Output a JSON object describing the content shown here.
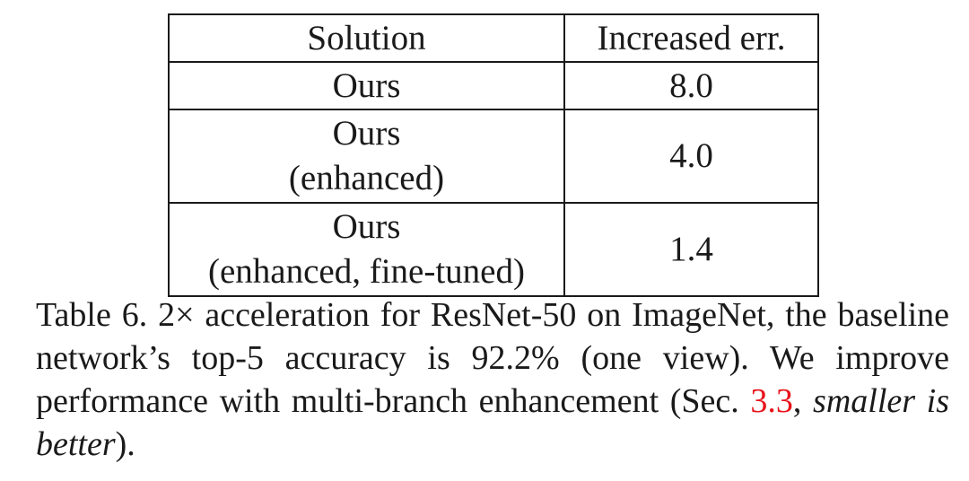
{
  "table": {
    "headers": [
      "Solution",
      "Increased err."
    ],
    "rows": [
      {
        "solution_lines": [
          "Ours"
        ],
        "value": "8.0"
      },
      {
        "solution_lines": [
          "Ours",
          "(enhanced)"
        ],
        "value": "4.0"
      },
      {
        "solution_lines": [
          "Ours",
          "(enhanced, fine-tuned)"
        ],
        "value": "1.4"
      }
    ]
  },
  "caption": {
    "label": "Table 6.",
    "text_part1": "2× acceleration for ResNet-50 on ImageNet, the baseline network’s top-5 accuracy is 92.2% (one view). We improve performance with multi-branch enhancement (Sec.",
    "section_ref": "3.3",
    "sep": ", ",
    "italic_note": "smaller is better",
    "closing": ")."
  },
  "colors": {
    "reference_link": "#e8141c",
    "text": "#1a1a1a"
  }
}
